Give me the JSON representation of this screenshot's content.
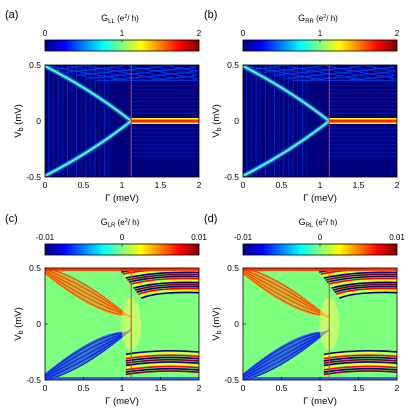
{
  "chart_data": [
    {
      "panel": "(a)",
      "type": "heatmap",
      "colorbar": {
        "title": "G",
        "sub": "LL",
        "unit": " (e",
        "unit_sup": "2",
        "unit_end": "/ h)",
        "ticks": [
          "0",
          "1",
          "2"
        ],
        "range": [
          0,
          2
        ],
        "colormap": "jet"
      },
      "xlabel": "Γ (meV)",
      "ylabel": "V",
      "ylabel_sub": "b",
      "ylabel_unit": " (mV)",
      "xlim": [
        0,
        2
      ],
      "ylim": [
        -0.5,
        0.5
      ],
      "xticks": [
        "0",
        "0.5",
        "1",
        "1.5",
        "2"
      ],
      "yticks": [
        "-0.5",
        "0",
        "0.5"
      ],
      "marker_gamma": 1.12,
      "features": {
        "gap_closing_gamma": 1.12,
        "zero_bias_peak_value": 2,
        "background_value": 0
      }
    },
    {
      "panel": "(b)",
      "type": "heatmap",
      "colorbar": {
        "title": "G",
        "sub": "RR",
        "unit": " (e",
        "unit_sup": "2",
        "unit_end": "/ h)",
        "ticks": [
          "0",
          "1",
          "2"
        ],
        "range": [
          0,
          2
        ],
        "colormap": "jet"
      },
      "xlabel": "Γ (meV)",
      "ylabel": "V",
      "ylabel_sub": "b",
      "ylabel_unit": " (mV)",
      "xlim": [
        0,
        2
      ],
      "ylim": [
        -0.5,
        0.5
      ],
      "xticks": [
        "0",
        "0.5",
        "1",
        "1.5",
        "2"
      ],
      "yticks": [
        "-0.5",
        "0",
        "0.5"
      ],
      "marker_gamma": 1.12,
      "features": {
        "gap_closing_gamma": 1.12,
        "zero_bias_peak_value": 2,
        "background_value": 0
      }
    },
    {
      "panel": "(c)",
      "type": "heatmap",
      "colorbar": {
        "title": "G",
        "sub": "LR",
        "unit": " (e",
        "unit_sup": "2",
        "unit_end": "/ h)",
        "ticks": [
          "-0.01",
          "0",
          "0.01"
        ],
        "range": [
          -0.01,
          0.01
        ],
        "colormap": "jet"
      },
      "xlabel": "Γ (meV)",
      "ylabel": "V",
      "ylabel_sub": "b",
      "ylabel_unit": " (mV)",
      "xlim": [
        0,
        2
      ],
      "ylim": [
        -0.5,
        0.5
      ],
      "xticks": [
        "0",
        "0.5",
        "1",
        "1.5",
        "2"
      ],
      "yticks": [
        "-0.5",
        "0",
        "0.5"
      ],
      "marker_gamma": 1.12,
      "features": {
        "gap_closing_gamma": 1.12,
        "background_value": 0
      }
    },
    {
      "panel": "(d)",
      "type": "heatmap",
      "colorbar": {
        "title": "G",
        "sub": "RL",
        "unit": " (e",
        "unit_sup": "2",
        "unit_end": "/ h)",
        "ticks": [
          "-0.01",
          "0",
          "0.01"
        ],
        "range": [
          -0.01,
          0.01
        ],
        "colormap": "jet"
      },
      "xlabel": "Γ (meV)",
      "ylabel": "V",
      "ylabel_sub": "b",
      "ylabel_unit": " (mV)",
      "xlim": [
        0,
        2
      ],
      "ylim": [
        -0.5,
        0.5
      ],
      "xticks": [
        "0",
        "0.5",
        "1",
        "1.5",
        "2"
      ],
      "yticks": [
        "-0.5",
        "0",
        "0.5"
      ],
      "marker_gamma": 1.12,
      "features": {
        "gap_closing_gamma": 1.12,
        "background_value": 0
      }
    }
  ],
  "colors": {
    "marker_line": "#ff2a2a",
    "jet": [
      "#00007f",
      "#0000ff",
      "#007fff",
      "#00ffff",
      "#7fff7f",
      "#ffff00",
      "#ff7f00",
      "#ff0000",
      "#7f0000"
    ]
  }
}
